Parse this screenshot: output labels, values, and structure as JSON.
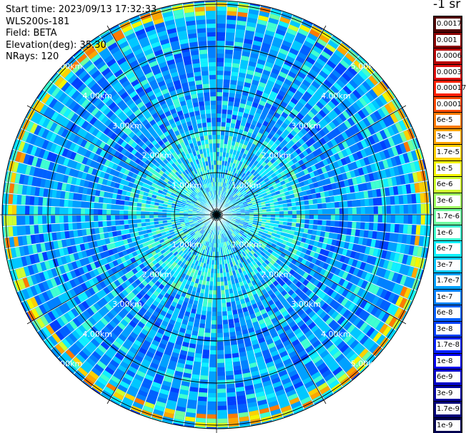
{
  "header": {
    "start_time": "Start time: 2023/09/13 17:32:33",
    "instrument": "WLS200s-181",
    "field": "Field: BETA",
    "elevation": "Elevation(deg): 35.30",
    "nrays": "NRays: 120"
  },
  "colorbar": {
    "units": "-1 sr",
    "labels": [
      "0.0017",
      "0.001",
      "0.0006",
      "0.0003",
      "0.00017",
      "0.0001",
      "6e-5",
      "3e-5",
      "1.7e-5",
      "1e-5",
      "6e-6",
      "3e-6",
      "1.7e-6",
      "1e-6",
      "6e-7",
      "3e-7",
      "1.7e-7",
      "1e-7",
      "6e-8",
      "3e-8",
      "1.7e-8",
      "1e-8",
      "6e-9",
      "3e-9",
      "1.7e-9",
      "1e-9"
    ],
    "colors": [
      "#500000",
      "#8b0000",
      "#b80000",
      "#e01010",
      "#ff2000",
      "#ff4a00",
      "#ff7a00",
      "#ffa500",
      "#ffd000",
      "#f5f500",
      "#d0ff30",
      "#a0ff60",
      "#70ffa0",
      "#40ffd0",
      "#10f0ff",
      "#00c8ff",
      "#00a0ff",
      "#0080ff",
      "#0060ff",
      "#0040ff",
      "#0020ff",
      "#0000ee",
      "#0000c8",
      "#0000a0",
      "#000078",
      "#000050"
    ]
  },
  "plot": {
    "range_rings": [
      "1.00km",
      "2.00km",
      "3.00km",
      "4.00km",
      "5.00km"
    ],
    "max_range_km": 5.0,
    "n_rays": 120
  }
}
